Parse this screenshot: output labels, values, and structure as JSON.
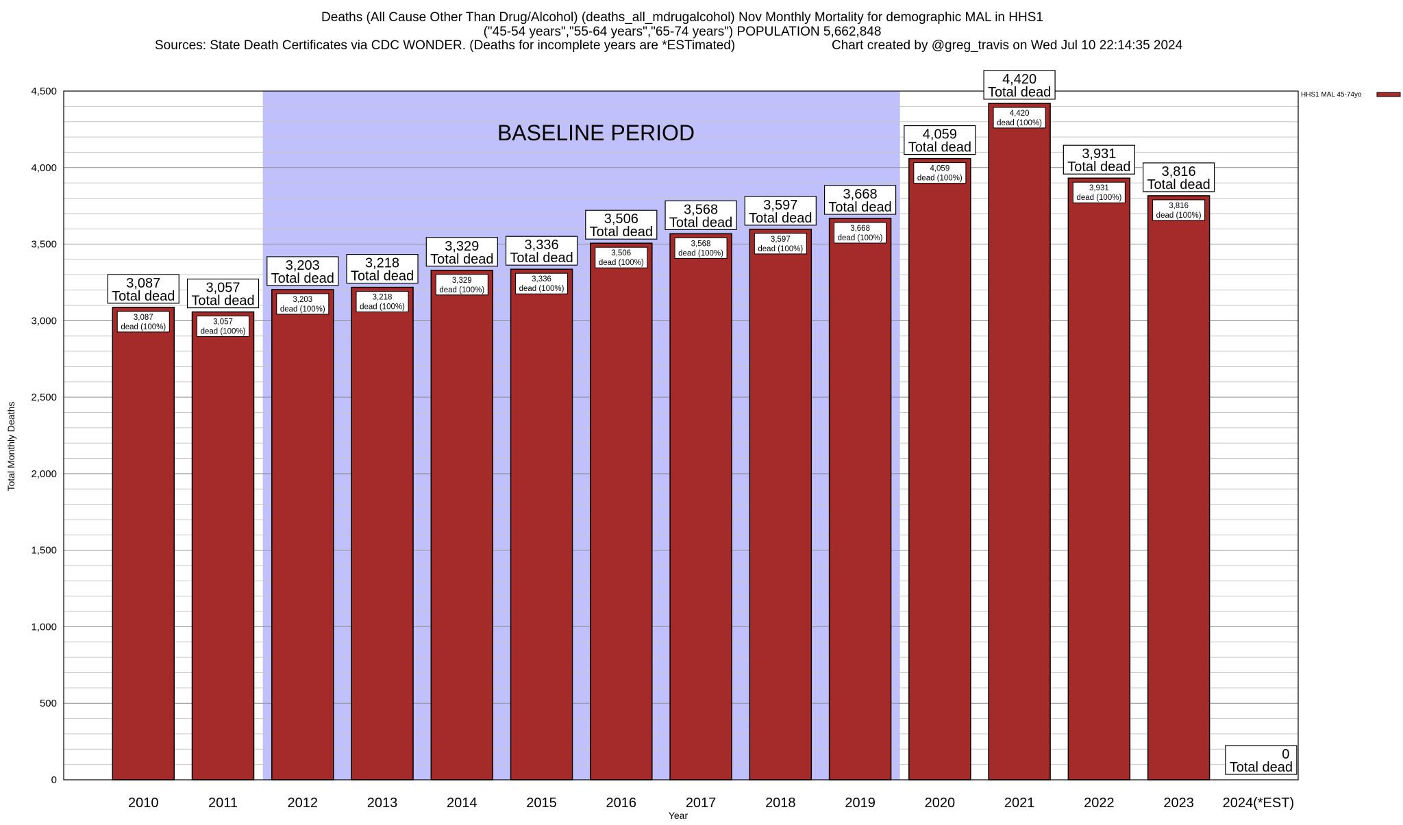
{
  "chart_data": {
    "type": "bar",
    "title": "Deaths (All Cause Other Than Drug/Alcohol) (deaths_all_mdrugalcohol) Nov Monthly Mortality for demographic MAL in HHS1",
    "subtitle": "(\"45-54 years\",\"55-64 years\",\"65-74 years\") POPULATION 5,662,848",
    "source_line": "Sources: State Death Certificates via CDC WONDER. (Deaths for incomplete years are *ESTimated)",
    "credit_line": "Chart created by @greg_travis on Wed Jul 10 22:14:35 2024",
    "xlabel": "Year",
    "ylabel": "Total Monthly Deaths",
    "ylim": [
      0,
      4500
    ],
    "y_ticks": [
      {
        "value": 0,
        "label": "0"
      },
      {
        "value": 500,
        "label": "500"
      },
      {
        "value": 1000,
        "label": "1,000"
      },
      {
        "value": 1500,
        "label": "1,500"
      },
      {
        "value": 2000,
        "label": "2,000"
      },
      {
        "value": 2500,
        "label": "2,500"
      },
      {
        "value": 3000,
        "label": "3,000"
      },
      {
        "value": 3500,
        "label": "3,500"
      },
      {
        "value": 4000,
        "label": "4,000"
      },
      {
        "value": 4500,
        "label": "4,500"
      }
    ],
    "minor_tick_step": 100,
    "grid": true,
    "categories": [
      "2010",
      "2011",
      "2012",
      "2013",
      "2014",
      "2015",
      "2016",
      "2017",
      "2018",
      "2019",
      "2020",
      "2021",
      "2022",
      "2023",
      "2024(*EST)"
    ],
    "series": [
      {
        "name": "HHS1 MAL 45-74yo",
        "color": "#a52a2a",
        "values": [
          3087,
          3057,
          3203,
          3218,
          3329,
          3336,
          3506,
          3568,
          3597,
          3668,
          4059,
          4420,
          3931,
          3816,
          0
        ]
      }
    ],
    "value_labels": [
      "3,087",
      "3,057",
      "3,203",
      "3,218",
      "3,329",
      "3,336",
      "3,506",
      "3,568",
      "3,597",
      "3,668",
      "4,059",
      "4,420",
      "3,931",
      "3,816",
      "0"
    ],
    "total_suffix": "Total dead",
    "inner_suffix": "dead (100%)",
    "baseline": {
      "label": "BASELINE PERIOD",
      "from": "2012",
      "to": "2019",
      "color": "#c0c0fc"
    },
    "legend": {
      "position": "top-right",
      "label": "HHS1 MAL 45-74yo"
    }
  }
}
